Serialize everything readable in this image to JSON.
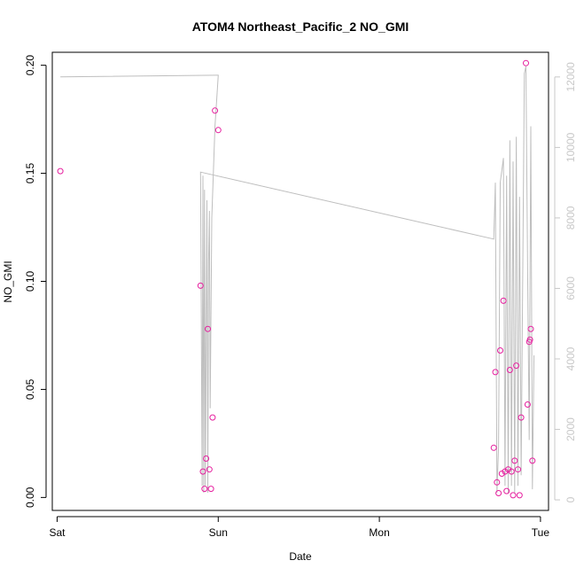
{
  "chart_data": {
    "type": "scatter",
    "title": "ATOM4 Northeast_Pacific_2 NO_GMI",
    "xlabel": "Date",
    "ylabel": "NO_GMI",
    "x_unit": "days since Saturday 00:00",
    "xlim": [
      -0.03,
      3.05
    ],
    "ylim": [
      -0.006,
      0.206
    ],
    "x_ticks": [
      {
        "value": 0,
        "label": "Sat"
      },
      {
        "value": 1,
        "label": "Sun"
      },
      {
        "value": 2,
        "label": "Mon"
      },
      {
        "value": 3,
        "label": "Tue"
      }
    ],
    "y_ticks": [
      {
        "value": 0.0,
        "label": "0.00"
      },
      {
        "value": 0.05,
        "label": "0.05"
      },
      {
        "value": 0.1,
        "label": "0.10"
      },
      {
        "value": 0.15,
        "label": "0.15"
      },
      {
        "value": 0.2,
        "label": "0.20"
      }
    ],
    "y2lim": [
      -300,
      12700
    ],
    "y2_ticks": [
      {
        "value": 0,
        "label": "0"
      },
      {
        "value": 2000,
        "label": "2000"
      },
      {
        "value": 4000,
        "label": "4000"
      },
      {
        "value": 6000,
        "label": "6000"
      },
      {
        "value": 8000,
        "label": "8000"
      },
      {
        "value": 10000,
        "label": "10000"
      },
      {
        "value": 12000,
        "label": "12000"
      }
    ],
    "grid": false,
    "colors": {
      "points": "#e61e9e",
      "altitude_line": "#bebebe",
      "right_axis": "#c8c8c8",
      "axis": "#000000"
    },
    "series": [
      {
        "kind": "points",
        "x": [
          0.02,
          0.89,
          0.905,
          0.915,
          0.925,
          0.935,
          0.945,
          0.955,
          0.965,
          0.98,
          1.0,
          2.71,
          2.72,
          2.73,
          2.74,
          2.75,
          2.76,
          2.77,
          2.78,
          2.79,
          2.8,
          2.81,
          2.82,
          2.83,
          2.84,
          2.85,
          2.86,
          2.87,
          2.88,
          2.91,
          2.92,
          2.93,
          2.935,
          2.94,
          2.95
        ],
        "y": [
          0.151,
          0.098,
          0.012,
          0.004,
          0.018,
          0.078,
          0.013,
          0.004,
          0.037,
          0.179,
          0.17,
          0.023,
          0.058,
          0.007,
          0.002,
          0.068,
          0.011,
          0.091,
          0.012,
          0.003,
          0.013,
          0.059,
          0.012,
          0.001,
          0.017,
          0.061,
          0.013,
          0.001,
          0.037,
          0.201,
          0.043,
          0.072,
          0.073,
          0.078,
          0.017
        ]
      },
      {
        "kind": "line",
        "y_axis": "right",
        "x": [
          0.02,
          0.99,
          1.0,
          0.98,
          0.96,
          0.95,
          0.945,
          0.94,
          0.935,
          0.93,
          0.92,
          0.915,
          0.91,
          0.905,
          0.9,
          0.89,
          2.71,
          2.72,
          2.73,
          2.74,
          2.75,
          2.77,
          2.78,
          2.79,
          2.8,
          2.81,
          2.82,
          2.83,
          2.84,
          2.85,
          2.86,
          2.87,
          2.88,
          2.9,
          2.91,
          2.92,
          2.93,
          2.94,
          2.95,
          2.96
        ],
        "y": [
          12000,
          12050,
          12050,
          10600,
          8000,
          2600,
          8200,
          6800,
          200,
          8500,
          400,
          8800,
          200,
          9200,
          400,
          9300,
          7400,
          9000,
          200,
          1500,
          9000,
          9700,
          400,
          9200,
          200,
          10200,
          400,
          9600,
          200,
          10300,
          400,
          8600,
          700,
          12100,
          12300,
          6500,
          1700,
          10600,
          300,
          4100
        ]
      }
    ]
  }
}
